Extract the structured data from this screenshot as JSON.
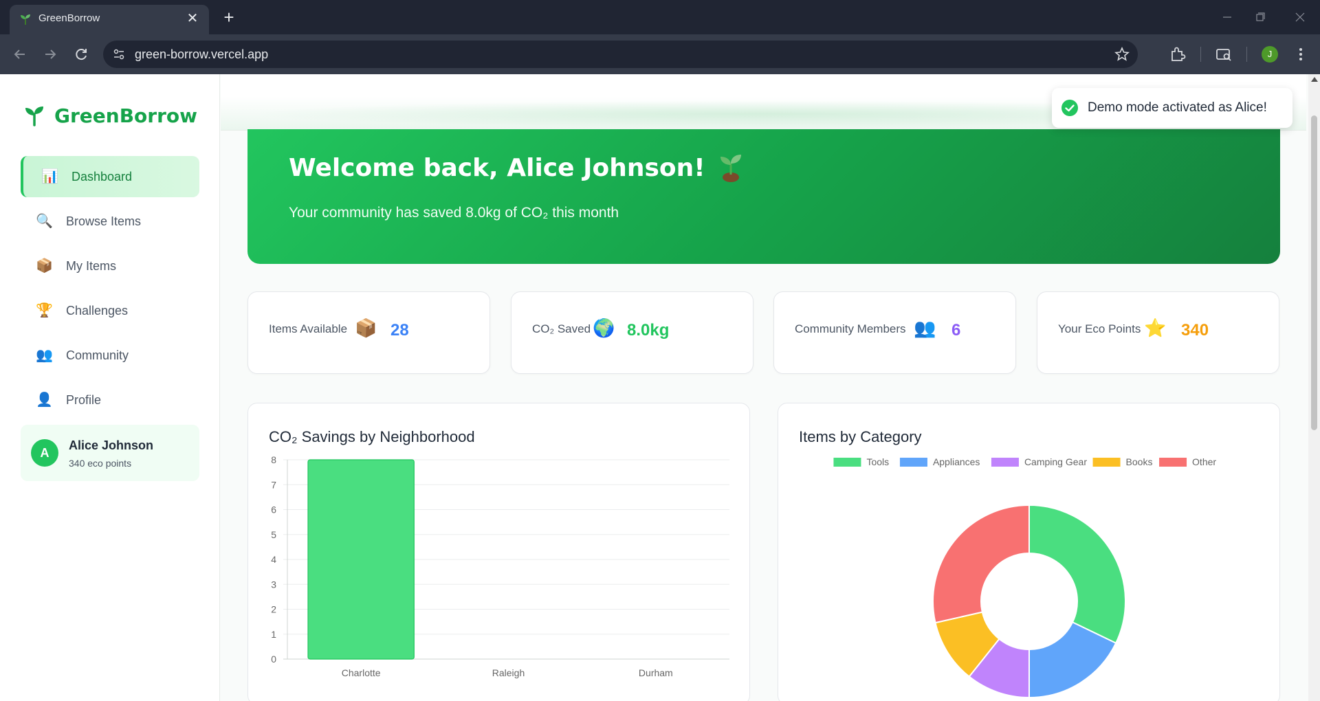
{
  "browser": {
    "tab_title": "GreenBorrow",
    "tab_close": "✕",
    "new_tab": "+",
    "url": "green-borrow.vercel.app",
    "profile_initial": "J"
  },
  "sidebar": {
    "brand": "GreenBorrow",
    "items": [
      {
        "label": "Dashboard",
        "icon": "bar-chart-icon",
        "active": true
      },
      {
        "label": "Browse Items",
        "icon": "magnifier-icon",
        "active": false
      },
      {
        "label": "My Items",
        "icon": "package-icon",
        "active": false
      },
      {
        "label": "Challenges",
        "icon": "trophy-icon",
        "active": false
      },
      {
        "label": "Community",
        "icon": "people-icon",
        "active": false
      },
      {
        "label": "Profile",
        "icon": "person-icon",
        "active": false
      }
    ],
    "user": {
      "initial": "A",
      "name": "Alice Johnson",
      "points": "340 eco points"
    }
  },
  "hero": {
    "title": "Welcome back, Alice Johnson!",
    "subtitle": "Your community has saved 8.0kg of CO₂ this month"
  },
  "stats": [
    {
      "label": "Items Available",
      "emoji": "📦",
      "value": "28",
      "color": "#3b82f6"
    },
    {
      "label": "CO₂ Saved",
      "emoji": "🌍",
      "value": "8.0kg",
      "color": "#22c55e"
    },
    {
      "label": "Community Members",
      "emoji": "👥",
      "value": "6",
      "color": "#8b5cf6"
    },
    {
      "label": "Your Eco Points",
      "emoji": "⭐",
      "value": "340",
      "color": "#f59e0b"
    }
  ],
  "toast": {
    "message": "Demo mode activated as Alice!"
  },
  "chart_data": [
    {
      "type": "bar",
      "title": "CO₂ Savings by Neighborhood",
      "categories": [
        "Charlotte",
        "Raleigh",
        "Durham"
      ],
      "values": [
        8,
        0,
        0
      ],
      "ylim": [
        0,
        8
      ],
      "yticks": [
        0,
        1,
        2,
        3,
        4,
        5,
        6,
        7,
        8
      ],
      "grid": true,
      "color": "#4ade80"
    },
    {
      "type": "pie",
      "title": "Items by Category",
      "labels": [
        "Tools",
        "Appliances",
        "Camping Gear",
        "Books",
        "Other"
      ],
      "values": [
        9,
        5,
        3,
        3,
        8
      ],
      "colors": [
        "#4ade80",
        "#60a5fa",
        "#c084fc",
        "#fbbf24",
        "#f87171"
      ],
      "legend": "top",
      "donut": true
    }
  ]
}
